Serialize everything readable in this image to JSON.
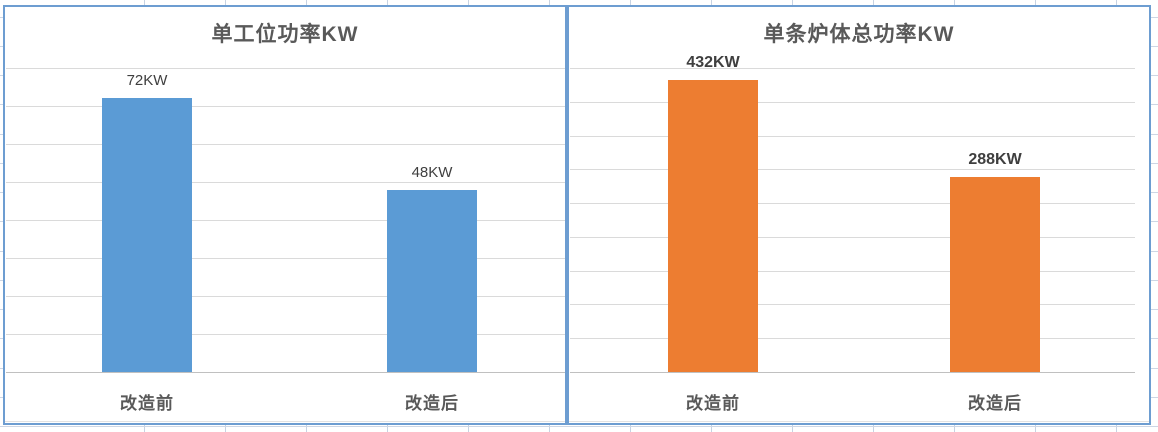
{
  "chart_data": [
    {
      "type": "bar",
      "title": "单工位功率KW",
      "categories": [
        "改造前",
        "改造后"
      ],
      "values": [
        72,
        48
      ],
      "data_labels": [
        "72KW",
        "48KW"
      ],
      "bar_color": "#5B9BD5",
      "xlabel": "",
      "ylabel": "",
      "ylim": [
        0,
        80
      ],
      "gridline_step": 10,
      "grid": true,
      "legend": false,
      "axis_labels_hidden": true
    },
    {
      "type": "bar",
      "title": "单条炉体总功率KW",
      "categories": [
        "改造前",
        "改造后"
      ],
      "values": [
        432,
        288
      ],
      "data_labels": [
        "432KW",
        "288KW"
      ],
      "bar_color": "#ED7D31",
      "xlabel": "",
      "ylabel": "",
      "ylim": [
        0,
        450
      ],
      "gridline_step": 50,
      "grid": true,
      "legend": false,
      "axis_labels_hidden": true
    }
  ],
  "colors": {
    "blue_bar": "#5B9BD5",
    "orange_bar": "#ED7D31",
    "chart_border": "#6D9DD1",
    "plot_gridline": "#DADADA",
    "axis_line": "#C0C0C0",
    "spreadsheet_gridline": "#C7D3E3",
    "title_text": "#595959",
    "data_label_text": "#3F3F3F"
  }
}
